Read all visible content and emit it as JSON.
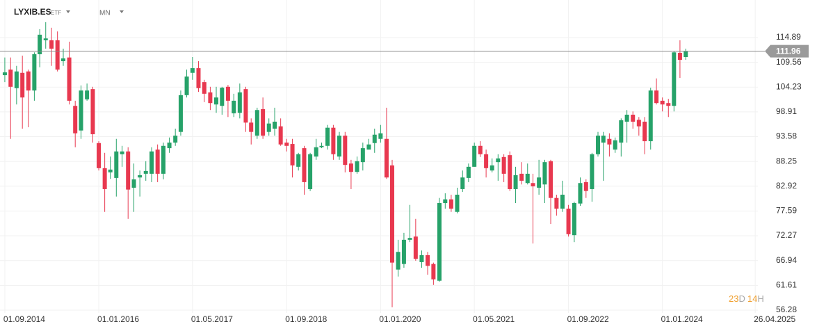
{
  "chart_data": {
    "type": "candlestick",
    "title": "LYXIB.ES",
    "instrument_type": "ETF",
    "interval": "MN",
    "current_price": 111.96,
    "countdown": [
      "23",
      "D",
      "14",
      "H"
    ],
    "up_color": "#26a269",
    "down_color": "#e8384f",
    "grid": true,
    "x": [
      "01.09.2014",
      "01.10.2014",
      "01.11.2014",
      "01.12.2014",
      "01.01.2015",
      "01.02.2015",
      "01.03.2015",
      "01.04.2015",
      "01.05.2015",
      "01.06.2015",
      "01.07.2015",
      "01.08.2015",
      "01.09.2015",
      "01.10.2015",
      "01.11.2015",
      "01.12.2015",
      "01.01.2016",
      "01.02.2016",
      "01.03.2016",
      "01.04.2016",
      "01.05.2016",
      "01.06.2016",
      "01.07.2016",
      "01.08.2016",
      "01.09.2016",
      "01.10.2016",
      "01.11.2016",
      "01.12.2016",
      "01.01.2017",
      "01.02.2017",
      "01.03.2017",
      "01.04.2017",
      "01.05.2017",
      "01.06.2017",
      "01.07.2017",
      "01.08.2017",
      "01.09.2017",
      "01.10.2017",
      "01.11.2017",
      "01.12.2017",
      "01.01.2018",
      "01.02.2018",
      "01.03.2018",
      "01.04.2018",
      "01.05.2018",
      "01.06.2018",
      "01.07.2018",
      "01.08.2018",
      "01.09.2018",
      "01.10.2018",
      "01.11.2018",
      "01.12.2018",
      "01.01.2019",
      "01.02.2019",
      "01.03.2019",
      "01.04.2019",
      "01.05.2019",
      "01.06.2019",
      "01.07.2019",
      "01.08.2019",
      "01.09.2019",
      "01.10.2019",
      "01.11.2019",
      "01.12.2019",
      "01.01.2020",
      "01.02.2020",
      "01.03.2020",
      "01.04.2020",
      "01.05.2020",
      "01.06.2020",
      "01.07.2020",
      "01.08.2020",
      "01.09.2020",
      "01.10.2020",
      "01.11.2020",
      "01.12.2020",
      "01.01.2021",
      "01.02.2021",
      "01.03.2021",
      "01.04.2021",
      "01.05.2021",
      "01.06.2021",
      "01.07.2021",
      "01.08.2021",
      "01.09.2021",
      "01.10.2021",
      "01.11.2021",
      "01.12.2021",
      "01.01.2022",
      "01.02.2022",
      "01.03.2022",
      "01.04.2022",
      "01.05.2022",
      "01.06.2022",
      "01.07.2022",
      "01.08.2022",
      "01.09.2022",
      "01.10.2022",
      "01.11.2022",
      "01.12.2022",
      "01.01.2023",
      "01.02.2023",
      "01.03.2023",
      "01.04.2023",
      "01.05.2023",
      "01.06.2023",
      "01.07.2023",
      "01.08.2023",
      "01.09.2023",
      "01.10.2023",
      "01.11.2023",
      "01.12.2023",
      "01.01.2024",
      "01.02.2024",
      "01.03.2024",
      "01.04.2024",
      "01.05.2024"
    ],
    "open": [
      106.8,
      108.0,
      104.0,
      107.3,
      107.6,
      103.5,
      111.3,
      114.3,
      114.3,
      114.3,
      109.8,
      110.6,
      100.2,
      94.9,
      101.6,
      103.8,
      92.2,
      86.8,
      85.9,
      84.7,
      89.8,
      90.4,
      82.6,
      84.8,
      85.6,
      85.6,
      90.8,
      85.6,
      91.1,
      92.3,
      94.6,
      102.5,
      107.3,
      108.3,
      105.3,
      103.1,
      100.5,
      100.2,
      104.3,
      98.6,
      98.7,
      103.8,
      96.6,
      93.8,
      99.5,
      94.6,
      95.3,
      95.8,
      92.3,
      92.0,
      87.1,
      91.1,
      82.3,
      89.3,
      91.3,
      91.6,
      95.5,
      89.3,
      93.8,
      87.8,
      86.0,
      88.1,
      90.8,
      92.2,
      93.1,
      93.1,
      87.4,
      65.0,
      66.2,
      71.4,
      72.1,
      66.6,
      68.1,
      66.2,
      62.6,
      79.3,
      80.1,
      77.4,
      82.3,
      84.7,
      87.1,
      91.6,
      89.8,
      86.3,
      88.1,
      89.2,
      89.6,
      82.3,
      85.6,
      83.6,
      83.6,
      82.6,
      83.3,
      88.3,
      80.4,
      78.1,
      78.1,
      72.4,
      79.2,
      83.8,
      82.3,
      89.8,
      92.3,
      93.1,
      90.8,
      92.3,
      96.8,
      98.3,
      97.2,
      96.8,
      92.6,
      103.5,
      101.3,
      100.8,
      100.2,
      111.6,
      110.7
    ],
    "high": [
      110.6,
      110.6,
      108.8,
      111.0,
      108.0,
      111.7,
      116.7,
      118.2,
      117.0,
      116.2,
      112.5,
      114.0,
      101.3,
      104.6,
      105.0,
      104.3,
      92.6,
      90.1,
      89.3,
      93.1,
      91.6,
      91.3,
      87.8,
      86.3,
      88.3,
      91.3,
      91.9,
      92.3,
      93.4,
      95.3,
      103.5,
      108.0,
      110.7,
      109.8,
      105.8,
      104.3,
      104.3,
      104.3,
      104.7,
      102.8,
      105.0,
      104.3,
      97.5,
      99.8,
      102.0,
      97.5,
      99.8,
      97.5,
      93.1,
      93.1,
      90.1,
      91.6,
      90.1,
      93.1,
      92.3,
      96.1,
      96.1,
      94.6,
      94.6,
      88.6,
      89.3,
      92.3,
      93.1,
      95.3,
      96.1,
      99.8,
      88.6,
      71.4,
      72.9,
      78.9,
      75.9,
      69.1,
      68.8,
      66.5,
      80.4,
      81.4,
      81.1,
      82.6,
      86.3,
      87.8,
      92.3,
      92.6,
      90.8,
      88.9,
      89.8,
      89.8,
      90.4,
      87.1,
      88.1,
      87.8,
      85.6,
      88.6,
      88.6,
      88.6,
      81.1,
      84.1,
      78.9,
      79.6,
      84.8,
      84.4,
      90.1,
      94.6,
      94.6,
      94.3,
      93.4,
      97.5,
      99.3,
      99.0,
      97.8,
      97.8,
      104.1,
      106.1,
      102.0,
      101.7,
      112.0,
      114.3,
      112.5
    ],
    "low": [
      105.3,
      93.1,
      100.5,
      95.3,
      95.6,
      101.3,
      108.5,
      112.5,
      108.8,
      107.6,
      108.8,
      100.5,
      91.3,
      93.1,
      101.3,
      92.3,
      86.3,
      77.4,
      84.5,
      80.7,
      87.1,
      75.9,
      77.4,
      80.7,
      84.1,
      83.8,
      83.8,
      84.4,
      90.1,
      91.6,
      93.8,
      102.0,
      105.8,
      103.2,
      101.0,
      99.3,
      98.7,
      98.3,
      97.8,
      97.8,
      97.5,
      94.6,
      91.9,
      93.1,
      93.1,
      93.8,
      93.8,
      91.6,
      90.4,
      84.8,
      86.3,
      81.1,
      81.9,
      88.6,
      91.1,
      90.8,
      88.6,
      88.6,
      85.9,
      82.3,
      85.6,
      86.3,
      90.8,
      90.1,
      92.3,
      84.5,
      56.9,
      63.5,
      65.4,
      70.9,
      66.9,
      65.4,
      63.9,
      61.7,
      62.4,
      78.1,
      77.4,
      77.1,
      81.7,
      83.8,
      87.1,
      89.2,
      84.8,
      85.9,
      84.1,
      83.8,
      81.9,
      79.3,
      83.3,
      83.3,
      70.6,
      81.1,
      79.3,
      74.8,
      76.6,
      77.4,
      72.1,
      70.9,
      78.7,
      80.4,
      79.6,
      89.3,
      84.1,
      89.3,
      90.1,
      89.3,
      92.3,
      95.3,
      93.8,
      89.8,
      90.8,
      100.5,
      99.0,
      97.8,
      99.0,
      106.2,
      110.1
    ],
    "close": [
      107.4,
      104.3,
      107.6,
      102.0,
      103.5,
      111.3,
      115.5,
      114.7,
      112.5,
      108.0,
      110.4,
      101.3,
      94.3,
      103.5,
      103.5,
      94.1,
      86.8,
      82.3,
      86.5,
      90.4,
      90.4,
      82.2,
      84.4,
      85.3,
      86.2,
      90.4,
      85.6,
      91.6,
      92.3,
      93.8,
      102.5,
      106.5,
      108.3,
      104.0,
      102.8,
      100.8,
      102.0,
      104.1,
      101.3,
      101.3,
      103.1,
      96.6,
      94.6,
      99.3,
      93.8,
      96.4,
      96.8,
      91.9,
      91.6,
      87.4,
      89.8,
      83.8,
      89.8,
      91.3,
      91.6,
      95.5,
      89.8,
      93.8,
      87.5,
      86.0,
      88.3,
      91.1,
      91.9,
      94.0,
      94.3,
      84.8,
      66.5,
      68.8,
      71.4,
      71.8,
      67.3,
      68.1,
      65.8,
      62.9,
      79.3,
      80.1,
      78.1,
      81.1,
      84.8,
      87.1,
      91.6,
      89.8,
      86.8,
      87.4,
      88.9,
      85.6,
      82.3,
      85.3,
      84.1,
      85.6,
      82.9,
      84.8,
      88.1,
      80.4,
      78.1,
      81.1,
      72.6,
      79.3,
      83.6,
      81.9,
      89.8,
      93.8,
      93.8,
      91.9,
      92.8,
      97.1,
      98.3,
      96.8,
      95.8,
      92.6,
      103.5,
      100.8,
      100.5,
      100.2,
      111.7,
      110.1,
      111.96
    ],
    "xlim": [
      "07.08.2014",
      "10.05.2025"
    ],
    "xticks": [
      "01.09.2014",
      "01.01.2016",
      "01.05.2017",
      "01.09.2018",
      "01.01.2020",
      "01.05.2021",
      "01.09.2022",
      "01.01.2024",
      "26.04.2025"
    ],
    "ylim": [
      55.68,
      122.96
    ],
    "yticks": [
      56.28,
      61.61,
      66.94,
      72.27,
      77.59,
      82.92,
      88.25,
      93.58,
      98.91,
      104.23,
      109.56,
      114.89
    ]
  }
}
